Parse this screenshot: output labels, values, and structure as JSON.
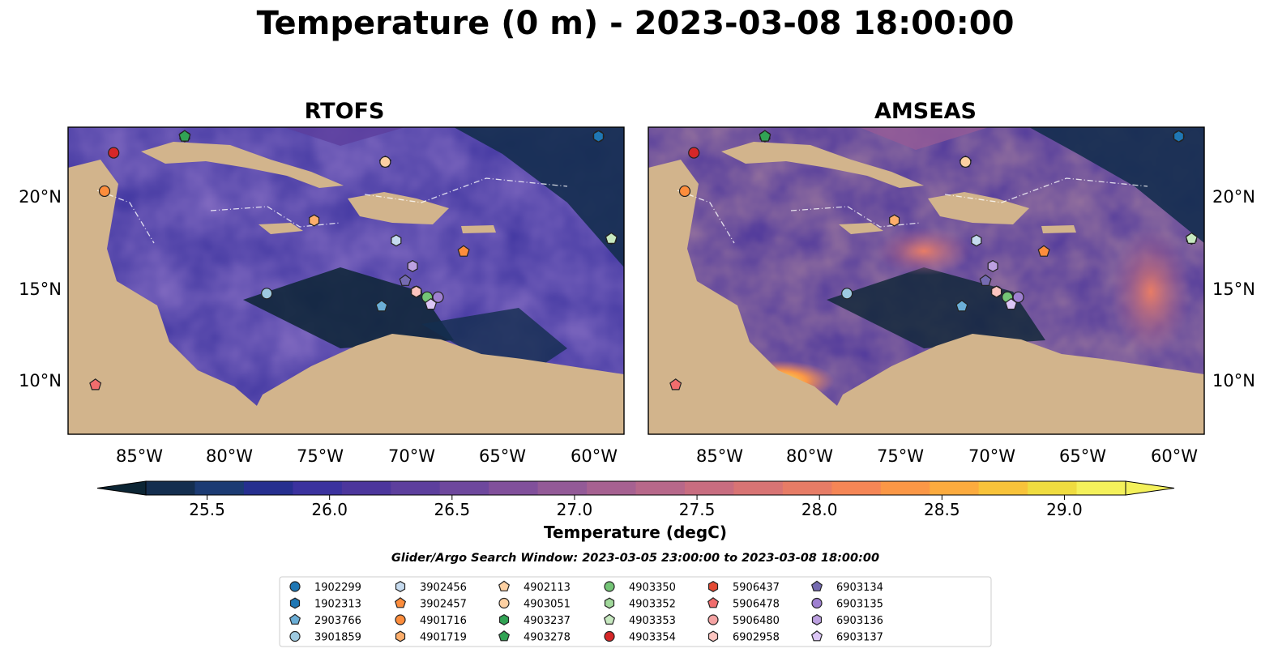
{
  "title": "Temperature (0 m) - 2023-03-08 18:00:00",
  "chart_data": [
    {
      "type": "heatmap",
      "title": "RTOFS",
      "x_ticks": [
        "85°W",
        "80°W",
        "75°W",
        "70°W",
        "65°W",
        "60°W"
      ],
      "y_ticks": [
        "20°N",
        "15°N",
        "10°N"
      ],
      "xlim": [
        -89,
        -58.5
      ],
      "ylim": [
        7.1,
        23.9
      ]
    },
    {
      "type": "heatmap",
      "title": "AMSEAS",
      "x_ticks": [
        "85°W",
        "80°W",
        "75°W",
        "70°W",
        "65°W",
        "60°W"
      ],
      "y_ticks": [
        "20°N",
        "15°N",
        "10°N"
      ],
      "xlim": [
        -89,
        -58.5
      ],
      "ylim": [
        7.1,
        23.9
      ]
    }
  ],
  "colorbar": {
    "label": "Temperature (degC)",
    "ticks": [
      "25.5",
      "26.0",
      "26.5",
      "27.0",
      "27.5",
      "28.0",
      "28.5",
      "29.0"
    ],
    "min": 25.25,
    "max": 29.25,
    "extend": "both",
    "colors": [
      "#0c2534",
      "#142e4f",
      "#1c3b73",
      "#262f8f",
      "#3b329e",
      "#4c369c",
      "#5d3f9d",
      "#6e489d",
      "#81509b",
      "#935a97",
      "#a66191",
      "#b7688a",
      "#c86d80",
      "#d87474",
      "#e77c66",
      "#f58656",
      "#fb9746",
      "#fcab3e",
      "#f8c33a",
      "#efdc40",
      "#f4f15b"
    ]
  },
  "search_window": "Glider/Argo Search Window: 2023-03-05 23:00:00 to 2023-03-08 18:00:00",
  "floats": [
    {
      "id": "1902299",
      "marker": "circle",
      "color": "#1f77b4",
      "lon": -59.9,
      "lat": 23.4
    },
    {
      "id": "1902313",
      "marker": "hexagon",
      "color": "#1f77b4",
      "lon": -59.9,
      "lat": 23.4
    },
    {
      "id": "2903766",
      "marker": "pentagon",
      "color": "#6baed6",
      "lon": -71.8,
      "lat": 14.1
    },
    {
      "id": "3901859",
      "marker": "circle",
      "color": "#9ecae1",
      "lon": -78.1,
      "lat": 14.8
    },
    {
      "id": "3902456",
      "marker": "hexagon",
      "color": "#c6dbef",
      "lon": -71.0,
      "lat": 17.7
    },
    {
      "id": "3902457",
      "marker": "pentagon",
      "color": "#fd8d3c",
      "lon": -67.3,
      "lat": 17.1
    },
    {
      "id": "4901716",
      "marker": "circle",
      "color": "#fd8d3c",
      "lon": -87.0,
      "lat": 20.4
    },
    {
      "id": "4901719",
      "marker": "hexagon",
      "color": "#fdae6b",
      "lon": -75.5,
      "lat": 18.8
    },
    {
      "id": "4902113",
      "marker": "pentagon",
      "color": "#fdd0a2",
      "lon": -71.6,
      "lat": 22.0
    },
    {
      "id": "4903051",
      "marker": "circle",
      "color": "#fdd0a2",
      "lon": -71.6,
      "lat": 22.0
    },
    {
      "id": "4903237",
      "marker": "hexagon",
      "color": "#31a354",
      "lon": -82.6,
      "lat": 23.4
    },
    {
      "id": "4903278",
      "marker": "pentagon",
      "color": "#31a354",
      "lon": -82.6,
      "lat": 23.4
    },
    {
      "id": "4903350",
      "marker": "circle",
      "color": "#74c476",
      "lon": -69.3,
      "lat": 14.6
    },
    {
      "id": "4903352",
      "marker": "hexagon",
      "color": "#a1d99b",
      "lon": -59.2,
      "lat": 17.8
    },
    {
      "id": "4903353",
      "marker": "pentagon",
      "color": "#c7e9c0",
      "lon": -59.2,
      "lat": 17.8
    },
    {
      "id": "4903354",
      "marker": "circle",
      "color": "#d62728",
      "lon": -86.5,
      "lat": 22.5
    },
    {
      "id": "5906437",
      "marker": "hexagon",
      "color": "#e34a33",
      "lon": -69.9,
      "lat": 14.9
    },
    {
      "id": "5906478",
      "marker": "pentagon",
      "color": "#f16d6d",
      "lon": -87.5,
      "lat": 9.8
    },
    {
      "id": "5906480",
      "marker": "circle",
      "color": "#f4a3a3",
      "lon": -69.9,
      "lat": 14.9
    },
    {
      "id": "6902958",
      "marker": "hexagon",
      "color": "#fcc5c0",
      "lon": -69.9,
      "lat": 14.9
    },
    {
      "id": "6903134",
      "marker": "pentagon",
      "color": "#756bb1",
      "lon": -70.5,
      "lat": 15.5
    },
    {
      "id": "6903135",
      "marker": "circle",
      "color": "#9e7fd0",
      "lon": -68.7,
      "lat": 14.6
    },
    {
      "id": "6903136",
      "marker": "hexagon",
      "color": "#bca0e0",
      "lon": -70.1,
      "lat": 16.3
    },
    {
      "id": "6903137",
      "marker": "pentagon",
      "color": "#dcc6f5",
      "lon": -69.1,
      "lat": 14.2
    }
  ]
}
